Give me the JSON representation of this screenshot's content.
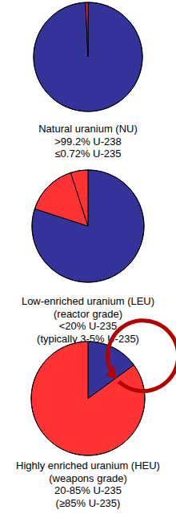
{
  "chart_data": [
    {
      "type": "pie",
      "title": "Natural uranium (NU)",
      "subtitle": [
        ">99.2% U-238",
        "≤0.72% U-235"
      ],
      "values": [
        99.28,
        0.72
      ],
      "colors": [
        "#333399",
        "#ff3333"
      ]
    },
    {
      "type": "pie",
      "title": "Low-enriched uranium (LEU)",
      "subtitle": [
        "(reactor grade)",
        "<20% U-235",
        "(typically 3-5% U-235)"
      ],
      "values": [
        80,
        15,
        5
      ],
      "colors": [
        "#333399",
        "#ff3333",
        "#ff3333"
      ]
    },
    {
      "type": "pie",
      "title": "Highly enriched uranium (HEU)",
      "subtitle": [
        "(weapons grade)",
        "20-85% U-235",
        "(≥85% U-235)"
      ],
      "values": [
        15,
        85
      ],
      "colors": [
        "#333399",
        "#ff3333"
      ]
    }
  ]
}
